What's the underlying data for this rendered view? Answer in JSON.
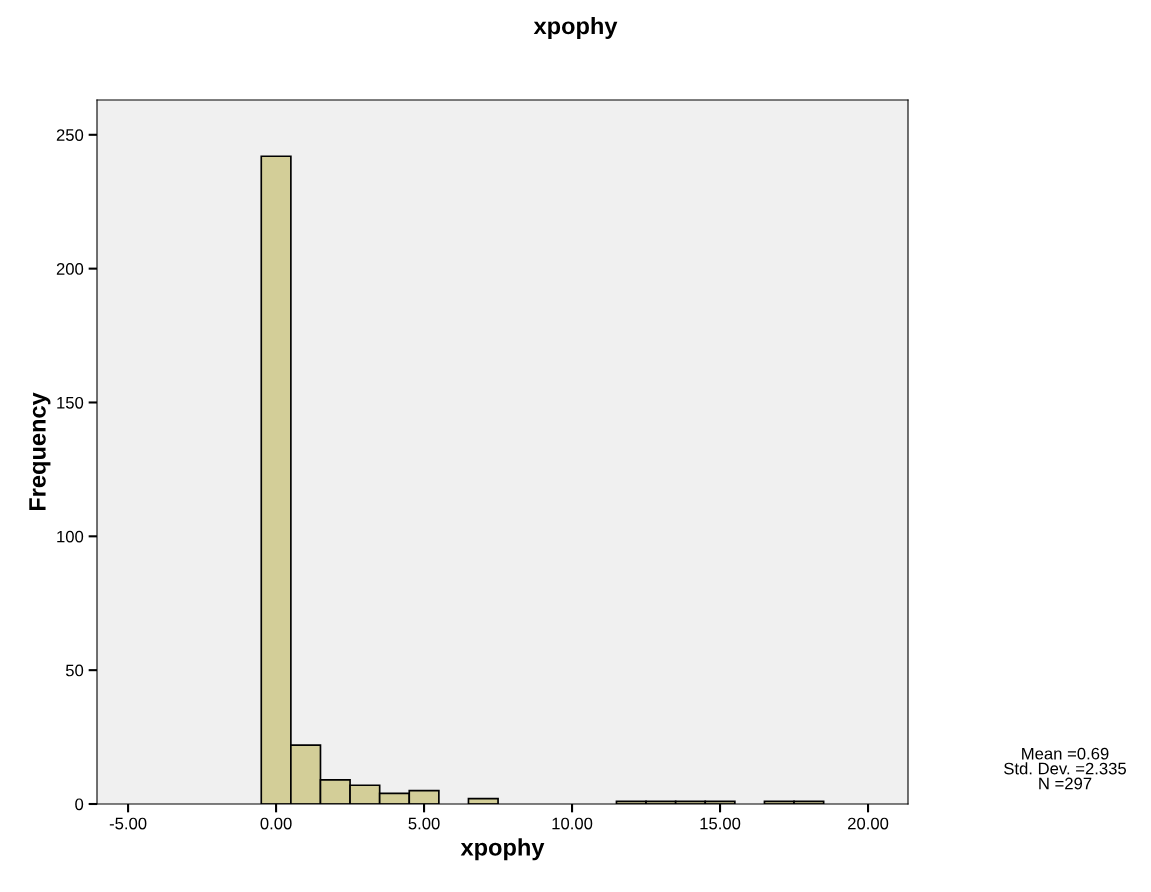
{
  "chart_data": {
    "type": "histogram",
    "title": "xpophy",
    "xlabel": "xpophy",
    "ylabel": "Frequency",
    "bins": [
      -0.5,
      0.5,
      1.5,
      2.5,
      3.5,
      4.5,
      5.5,
      6.5,
      7.5,
      8.5,
      9.5,
      10.5,
      11.5,
      12.5,
      13.5,
      14.5,
      15.5,
      16.5,
      17.5,
      18.5
    ],
    "values": [
      242,
      22,
      9,
      7,
      4,
      5,
      0,
      2,
      0,
      0,
      0,
      0,
      1,
      1,
      1,
      1,
      0,
      1,
      1
    ],
    "color": "#d3ce98",
    "xlim": [
      -6.05,
      21.35
    ],
    "ylim": [
      0,
      263
    ],
    "xticks": [
      {
        "value": -5,
        "label": "-5.00"
      },
      {
        "value": 0,
        "label": "0.00"
      },
      {
        "value": 5,
        "label": "5.00"
      },
      {
        "value": 10,
        "label": "10.00"
      },
      {
        "value": 15,
        "label": "15.00"
      },
      {
        "value": 20,
        "label": "20.00"
      }
    ],
    "yticks": [
      0,
      50,
      100,
      150,
      200,
      250
    ],
    "grid": false,
    "annotations": [
      "Mean =0.69\nStd. Dev. =2.335\nN =297"
    ]
  }
}
